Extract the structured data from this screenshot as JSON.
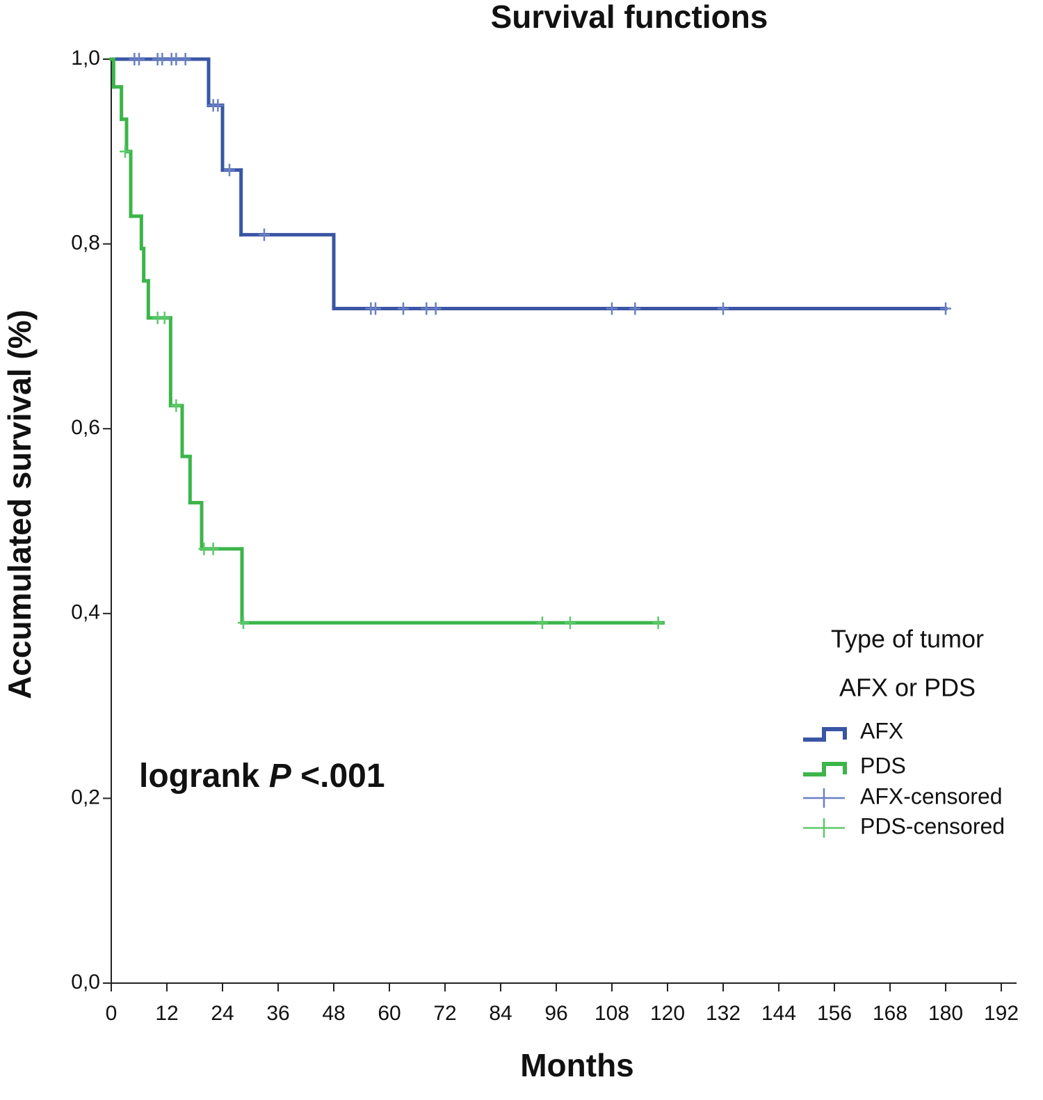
{
  "chart_data": {
    "type": "survival-step",
    "title": "Survival functions",
    "x_label": "Months",
    "y_label": "Accumulated survival (%)",
    "xlim": [
      0,
      195
    ],
    "ylim": [
      0,
      1
    ],
    "xticks": [
      0,
      12,
      24,
      36,
      48,
      60,
      72,
      84,
      96,
      108,
      120,
      132,
      144,
      156,
      168,
      180,
      192
    ],
    "yticks": [
      {
        "value": 0,
        "label": "0,0"
      },
      {
        "value": 0.2,
        "label": "0,2"
      },
      {
        "value": 0.4,
        "label": "0,4"
      },
      {
        "value": 0.6,
        "label": "0,6"
      },
      {
        "value": 0.8,
        "label": "0,8"
      },
      {
        "value": 1,
        "label": "1,0"
      }
    ],
    "legend_title": [
      "Type of tumor",
      "AFX or PDS"
    ],
    "annotation": {
      "text": "logrank",
      "italic": "P",
      "rest": "<.001"
    },
    "series": [
      {
        "name": "AFX",
        "color": "#3a55a4",
        "x": [
          0,
          21,
          24,
          28,
          48,
          180
        ],
        "values": [
          1,
          0.95,
          0.88,
          0.81,
          0.73,
          0.73
        ],
        "censored_name": "AFX-censored",
        "censored_color": "#6b80c4",
        "censored_x": [
          5,
          6,
          10,
          11,
          13,
          14,
          16,
          22,
          23,
          25.5,
          33,
          56,
          57,
          63,
          68,
          70,
          108,
          113,
          132,
          180
        ],
        "censored_values": [
          1,
          1,
          1,
          1,
          1,
          1,
          1,
          0.95,
          0.95,
          0.88,
          0.81,
          0.73,
          0.73,
          0.73,
          0.73,
          0.73,
          0.73,
          0.73,
          0.73,
          0.73
        ]
      },
      {
        "name": "PDS",
        "color": "#3cb54a",
        "x": [
          0,
          0.5,
          2.2,
          3.3,
          4.2,
          6.5,
          7,
          8,
          12.8,
          15.3,
          17,
          19.5,
          28.2,
          119
        ],
        "values": [
          1,
          0.97,
          0.935,
          0.9,
          0.83,
          0.795,
          0.76,
          0.72,
          0.625,
          0.57,
          0.52,
          0.47,
          0.39,
          0.39
        ],
        "censored_name": "PDS-censored",
        "censored_color": "#5cc96a",
        "censored_x": [
          3,
          10,
          11.5,
          14,
          20,
          22,
          28.5,
          93,
          99,
          118
        ],
        "censored_values": [
          0.9,
          0.72,
          0.72,
          0.625,
          0.47,
          0.47,
          0.39,
          0.39,
          0.39,
          0.39
        ]
      }
    ]
  }
}
